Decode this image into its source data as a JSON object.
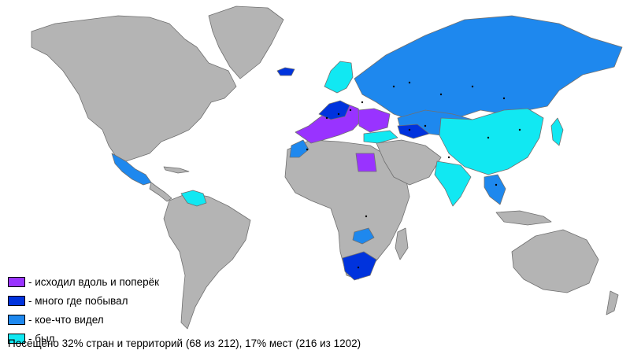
{
  "colors": {
    "ocean": "#ffffff",
    "unvisited": "#b4b4b4",
    "level1": "#9933ff",
    "level2": "#0033dd",
    "level3": "#1e88ee",
    "level4": "#11e8f2",
    "marker": "#000000"
  },
  "legend": [
    {
      "label": "- исходил вдоль и поперёк",
      "color": "#9933ff"
    },
    {
      "label": "- много где побывал",
      "color": "#0033dd"
    },
    {
      "label": "- кое-что видел",
      "color": "#1e88ee"
    },
    {
      "label": "- был",
      "color": "#11e8f2"
    }
  ],
  "footer": "Посещено 32% стран и территорий (68 из 212), 17% мест (216 из 1202)"
}
